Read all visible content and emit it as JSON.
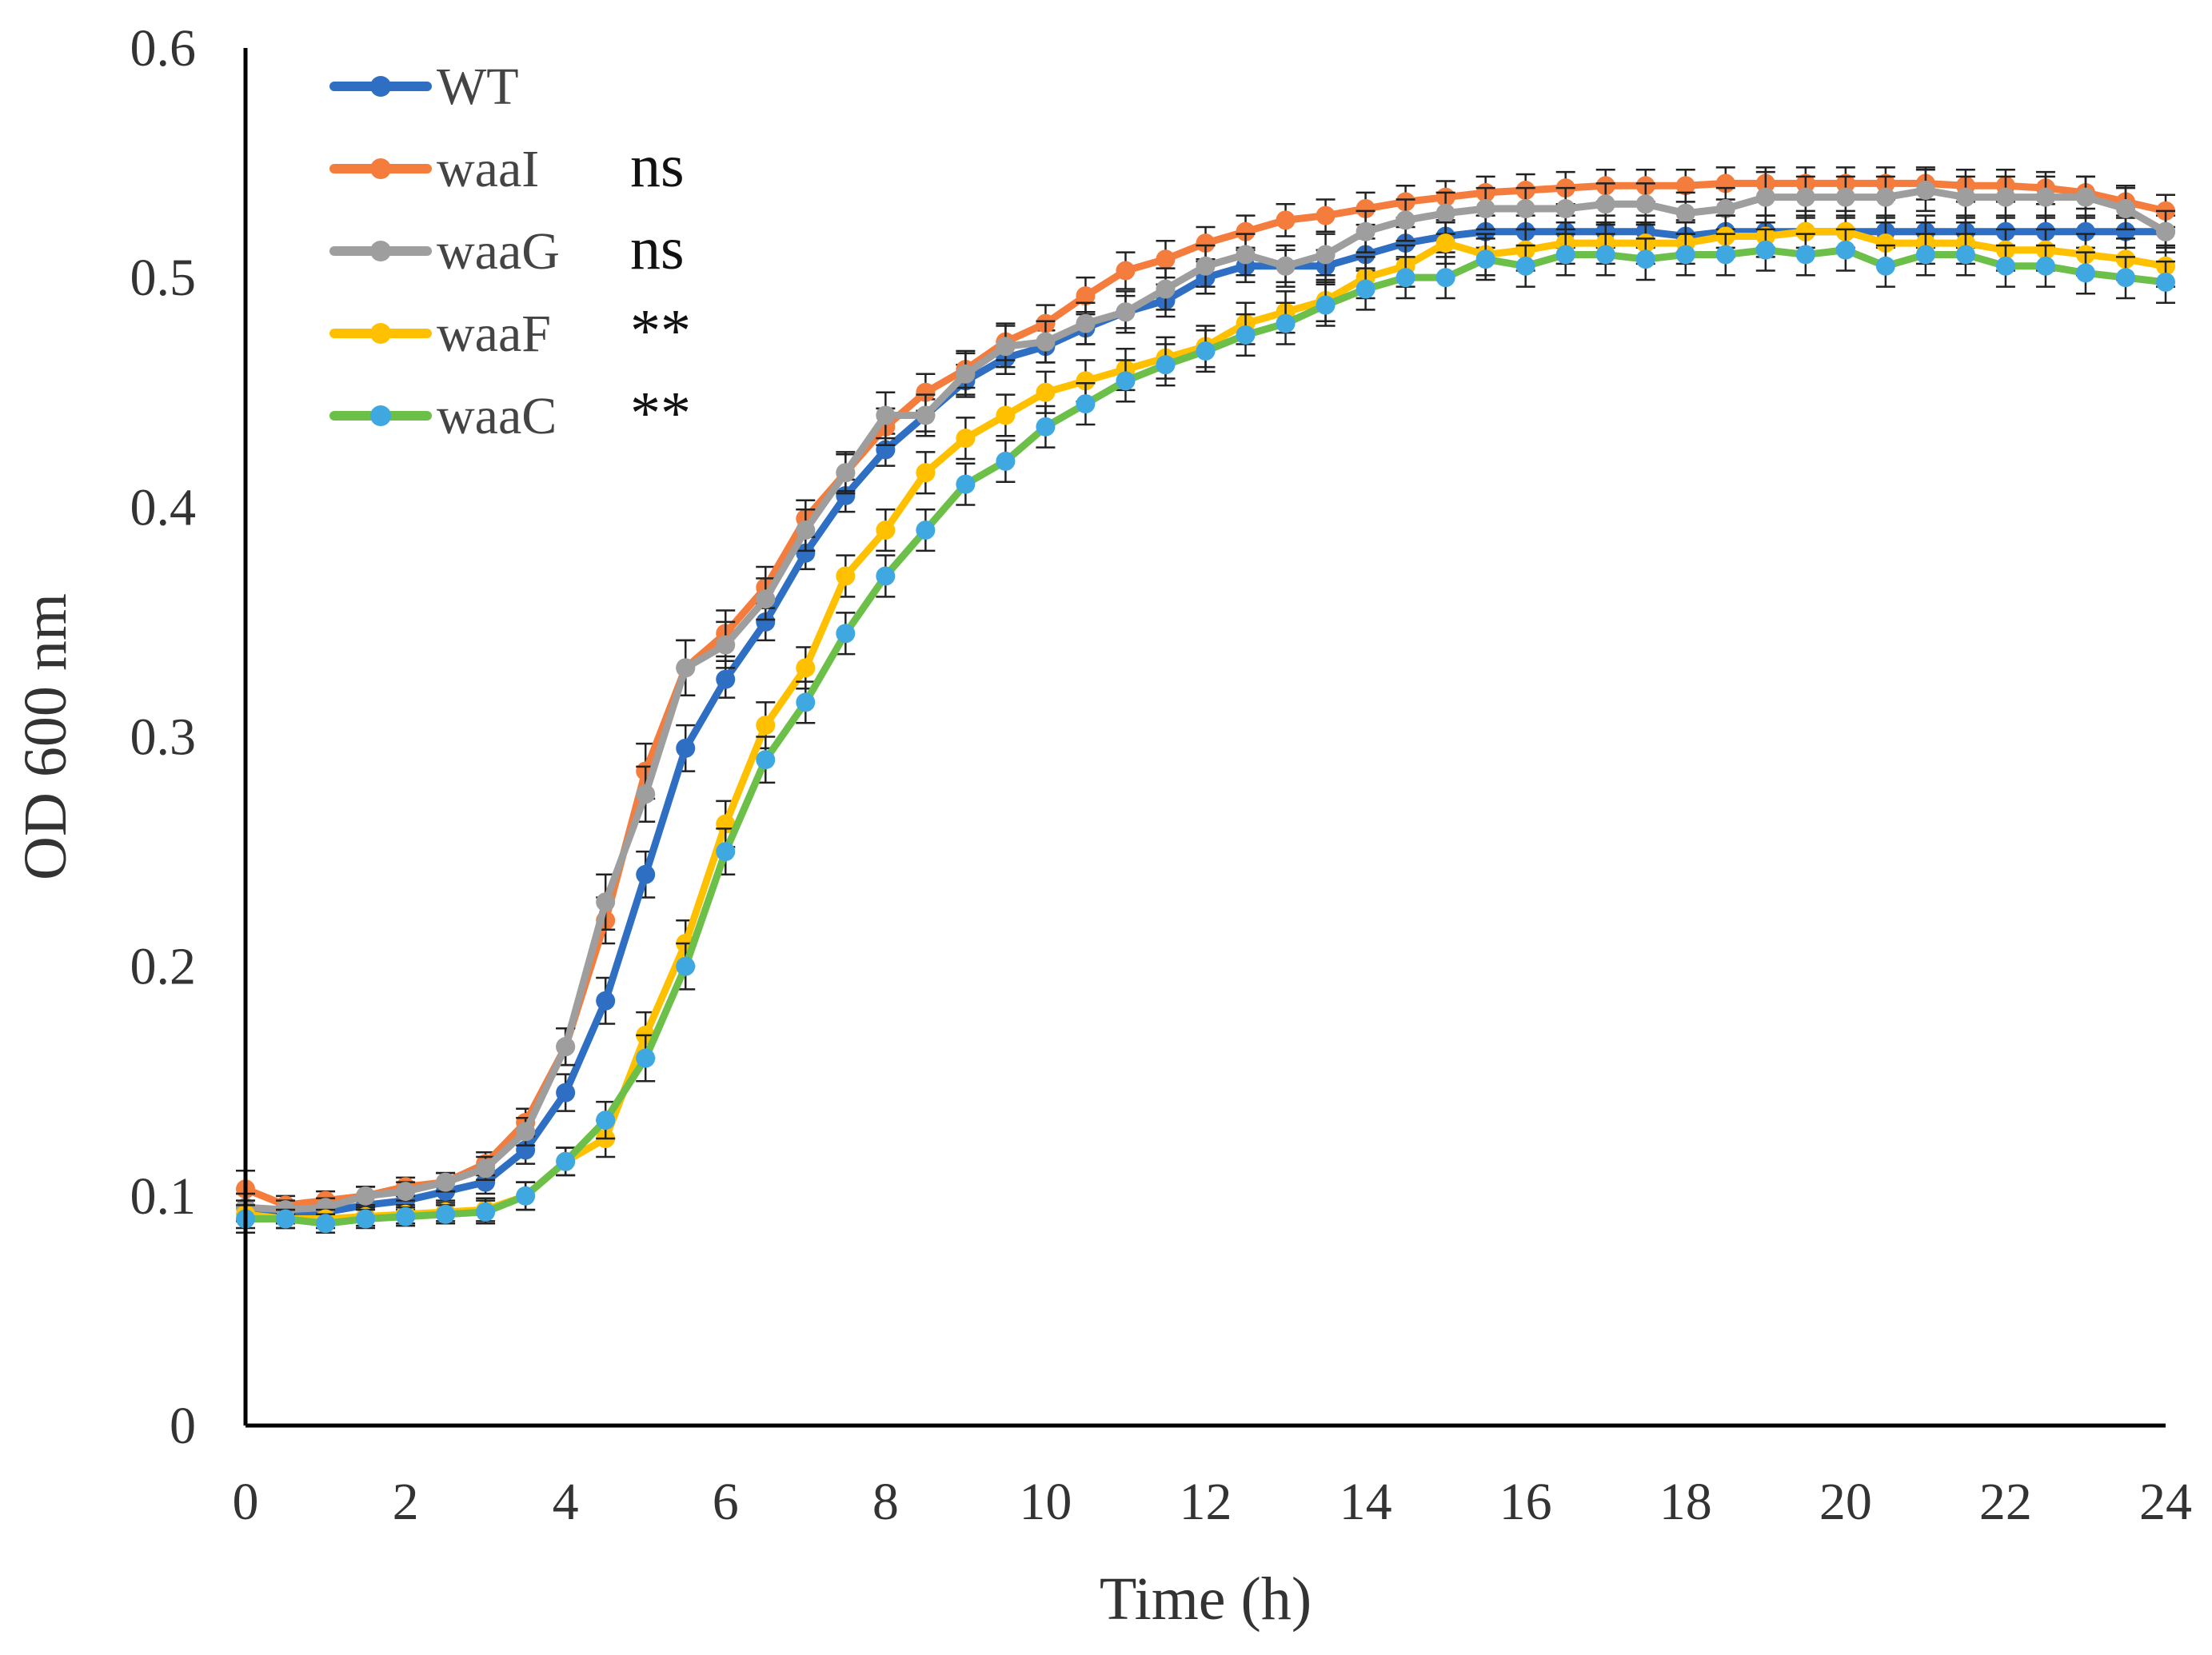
{
  "chart_data": {
    "type": "line",
    "xlabel": "Time (h)",
    "ylabel": "OD 600 nm",
    "xlim": [
      0,
      24
    ],
    "ylim": [
      0,
      0.6
    ],
    "x_ticks": [
      0,
      2,
      4,
      6,
      8,
      10,
      12,
      14,
      16,
      18,
      20,
      22,
      24
    ],
    "y_ticks": [
      0,
      0.1,
      0.2,
      0.3,
      0.4,
      0.5,
      0.6
    ],
    "y_tick_labels": [
      "0",
      "0.1",
      "0.2",
      "0.3",
      "0.4",
      "0.5",
      "0.6"
    ],
    "grid": false,
    "legend_position": "top-left",
    "error_bars": true,
    "x": [
      0,
      0.5,
      1,
      1.5,
      2,
      2.5,
      3,
      3.5,
      4,
      4.5,
      5,
      5.5,
      6,
      6.5,
      7,
      7.5,
      8,
      8.5,
      9,
      9.5,
      10,
      10.5,
      11,
      11.5,
      12,
      12.5,
      13,
      13.5,
      14,
      14.5,
      15,
      15.5,
      16,
      16.5,
      17,
      17.5,
      18,
      18.5,
      19,
      19.5,
      20,
      20.5,
      21,
      21.5,
      22,
      22.5,
      23,
      23.5,
      24
    ],
    "series": [
      {
        "name": "WT",
        "color": "#2e6fc4",
        "annotation": "",
        "values": [
          0.095,
          0.092,
          0.093,
          0.096,
          0.098,
          0.102,
          0.106,
          0.12,
          0.145,
          0.185,
          0.24,
          0.295,
          0.325,
          0.35,
          0.38,
          0.405,
          0.425,
          0.44,
          0.455,
          0.465,
          0.47,
          0.478,
          0.485,
          0.49,
          0.5,
          0.505,
          0.505,
          0.505,
          0.51,
          0.515,
          0.518,
          0.52,
          0.52,
          0.52,
          0.52,
          0.52,
          0.518,
          0.52,
          0.52,
          0.52,
          0.52,
          0.52,
          0.52,
          0.52,
          0.52,
          0.52,
          0.52,
          0.52,
          0.52
        ],
        "errors": [
          0.006,
          0.004,
          0.004,
          0.004,
          0.004,
          0.004,
          0.005,
          0.006,
          0.008,
          0.01,
          0.01,
          0.01,
          0.008,
          0.008,
          0.007,
          0.007,
          0.007,
          0.007,
          0.007,
          0.007,
          0.007,
          0.007,
          0.007,
          0.007,
          0.007,
          0.007,
          0.007,
          0.007,
          0.007,
          0.007,
          0.007,
          0.007,
          0.007,
          0.007,
          0.007,
          0.007,
          0.007,
          0.007,
          0.007,
          0.007,
          0.007,
          0.007,
          0.007,
          0.007,
          0.007,
          0.007,
          0.007,
          0.007,
          0.007
        ]
      },
      {
        "name": "waaI",
        "color": "#f47c3c",
        "annotation": "ns",
        "values": [
          0.103,
          0.096,
          0.098,
          0.1,
          0.104,
          0.106,
          0.114,
          0.132,
          0.165,
          0.22,
          0.285,
          0.33,
          0.345,
          0.365,
          0.395,
          0.415,
          0.435,
          0.45,
          0.46,
          0.472,
          0.48,
          0.492,
          0.503,
          0.508,
          0.515,
          0.52,
          0.525,
          0.527,
          0.53,
          0.533,
          0.535,
          0.537,
          0.538,
          0.539,
          0.54,
          0.54,
          0.54,
          0.541,
          0.541,
          0.541,
          0.541,
          0.541,
          0.541,
          0.54,
          0.54,
          0.539,
          0.537,
          0.533,
          0.529
        ],
        "errors": [
          0.008,
          0.004,
          0.004,
          0.004,
          0.004,
          0.004,
          0.005,
          0.006,
          0.008,
          0.01,
          0.012,
          0.012,
          0.01,
          0.009,
          0.008,
          0.008,
          0.008,
          0.008,
          0.008,
          0.008,
          0.008,
          0.008,
          0.008,
          0.008,
          0.007,
          0.007,
          0.007,
          0.007,
          0.007,
          0.007,
          0.007,
          0.007,
          0.007,
          0.007,
          0.007,
          0.007,
          0.007,
          0.007,
          0.007,
          0.007,
          0.007,
          0.007,
          0.007,
          0.007,
          0.007,
          0.007,
          0.007,
          0.007,
          0.007
        ]
      },
      {
        "name": "waaG",
        "color": "#9e9e9e",
        "annotation": "ns",
        "values": [
          0.095,
          0.094,
          0.095,
          0.1,
          0.102,
          0.106,
          0.112,
          0.128,
          0.165,
          0.228,
          0.275,
          0.33,
          0.34,
          0.36,
          0.39,
          0.415,
          0.44,
          0.44,
          0.458,
          0.47,
          0.472,
          0.48,
          0.485,
          0.495,
          0.505,
          0.51,
          0.505,
          0.51,
          0.52,
          0.525,
          0.528,
          0.53,
          0.53,
          0.53,
          0.532,
          0.532,
          0.528,
          0.53,
          0.535,
          0.535,
          0.535,
          0.535,
          0.538,
          0.535,
          0.535,
          0.535,
          0.535,
          0.53,
          0.52
        ],
        "errors": [
          0.006,
          0.004,
          0.004,
          0.004,
          0.004,
          0.004,
          0.005,
          0.006,
          0.008,
          0.012,
          0.012,
          0.012,
          0.01,
          0.009,
          0.009,
          0.009,
          0.01,
          0.009,
          0.009,
          0.009,
          0.009,
          0.009,
          0.009,
          0.009,
          0.009,
          0.009,
          0.009,
          0.009,
          0.009,
          0.009,
          0.009,
          0.009,
          0.009,
          0.009,
          0.009,
          0.009,
          0.009,
          0.009,
          0.011,
          0.009,
          0.009,
          0.009,
          0.009,
          0.009,
          0.009,
          0.009,
          0.009,
          0.009,
          0.009
        ]
      },
      {
        "name": "waaF",
        "color": "#ffc000",
        "annotation": "**",
        "values": [
          0.092,
          0.09,
          0.09,
          0.091,
          0.092,
          0.093,
          0.094,
          0.1,
          0.115,
          0.125,
          0.17,
          0.21,
          0.262,
          0.305,
          0.33,
          0.37,
          0.39,
          0.415,
          0.43,
          0.44,
          0.45,
          0.455,
          0.46,
          0.465,
          0.47,
          0.48,
          0.485,
          0.49,
          0.5,
          0.505,
          0.515,
          0.51,
          0.512,
          0.515,
          0.515,
          0.515,
          0.515,
          0.518,
          0.518,
          0.52,
          0.52,
          0.515,
          0.515,
          0.515,
          0.512,
          0.512,
          0.51,
          0.508,
          0.505
        ],
        "errors": [
          0.006,
          0.004,
          0.004,
          0.004,
          0.004,
          0.004,
          0.005,
          0.006,
          0.006,
          0.008,
          0.01,
          0.01,
          0.01,
          0.01,
          0.009,
          0.009,
          0.009,
          0.009,
          0.009,
          0.009,
          0.009,
          0.009,
          0.009,
          0.009,
          0.009,
          0.009,
          0.009,
          0.009,
          0.009,
          0.009,
          0.009,
          0.009,
          0.009,
          0.009,
          0.009,
          0.009,
          0.009,
          0.009,
          0.009,
          0.009,
          0.009,
          0.009,
          0.009,
          0.009,
          0.009,
          0.009,
          0.009,
          0.009,
          0.009
        ]
      },
      {
        "name": "waaC",
        "color": "#6cc04a",
        "marker_color": "#3fa8e0",
        "annotation": "**",
        "values": [
          0.09,
          0.09,
          0.088,
          0.09,
          0.091,
          0.092,
          0.093,
          0.1,
          0.115,
          0.133,
          0.16,
          0.2,
          0.25,
          0.29,
          0.315,
          0.345,
          0.37,
          0.39,
          0.41,
          0.42,
          0.435,
          0.445,
          0.455,
          0.462,
          0.468,
          0.475,
          0.48,
          0.488,
          0.495,
          0.5,
          0.5,
          0.508,
          0.505,
          0.51,
          0.51,
          0.508,
          0.51,
          0.51,
          0.512,
          0.51,
          0.512,
          0.505,
          0.51,
          0.51,
          0.505,
          0.505,
          0.502,
          0.5,
          0.498
        ],
        "errors": [
          0.006,
          0.004,
          0.004,
          0.004,
          0.004,
          0.004,
          0.005,
          0.006,
          0.006,
          0.008,
          0.01,
          0.01,
          0.01,
          0.01,
          0.009,
          0.009,
          0.009,
          0.009,
          0.009,
          0.009,
          0.009,
          0.009,
          0.009,
          0.009,
          0.009,
          0.009,
          0.009,
          0.009,
          0.009,
          0.009,
          0.009,
          0.009,
          0.009,
          0.009,
          0.009,
          0.009,
          0.009,
          0.009,
          0.009,
          0.009,
          0.009,
          0.009,
          0.009,
          0.009,
          0.009,
          0.009,
          0.009,
          0.009,
          0.009
        ]
      }
    ]
  }
}
